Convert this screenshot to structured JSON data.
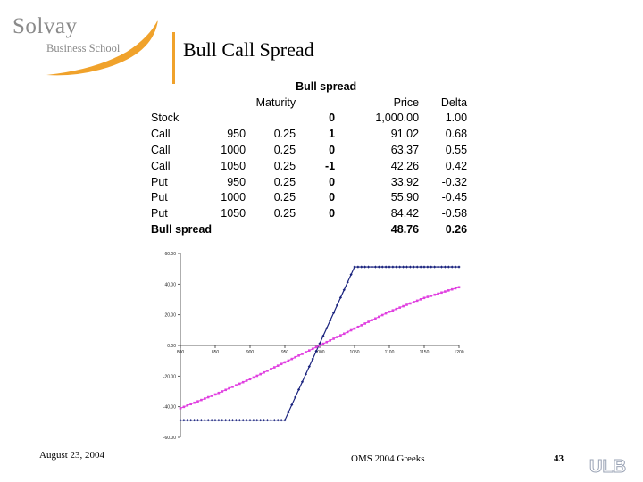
{
  "logo": {
    "name": "Solvay",
    "subtitle": "Business School",
    "accent_color": "#f0a22b",
    "text_color": "#8a8a8a"
  },
  "slide": {
    "title": "Bull Call Spread"
  },
  "table": {
    "caption": "Bull spread",
    "headers": [
      "",
      "",
      "Maturity",
      "",
      "Price",
      "Delta"
    ],
    "rows": [
      [
        "Stock",
        "",
        "",
        "0",
        "1,000.00",
        "1.00"
      ],
      [
        "Call",
        "950",
        "0.25",
        "1",
        "91.02",
        "0.68"
      ],
      [
        "Call",
        "1000",
        "0.25",
        "0",
        "63.37",
        "0.55"
      ],
      [
        "Call",
        "1050",
        "0.25",
        "-1",
        "42.26",
        "0.42"
      ],
      [
        "Put",
        "950",
        "0.25",
        "0",
        "33.92",
        "-0.32"
      ],
      [
        "Put",
        "1000",
        "0.25",
        "0",
        "55.90",
        "-0.45"
      ],
      [
        "Put",
        "1050",
        "0.25",
        "0",
        "84.42",
        "-0.58"
      ]
    ],
    "total": [
      "Bull spread",
      "",
      "",
      "",
      "48.76",
      "0.26"
    ]
  },
  "chart_data": {
    "type": "line",
    "xlim": [
      800,
      1200
    ],
    "ylim": [
      -60,
      60
    ],
    "x_ticks": [
      "800",
      "850",
      "900",
      "950",
      "1000",
      "1050",
      "1100",
      "1150",
      "1200"
    ],
    "y_ticks": [
      "60.00",
      "40.00",
      "20.00",
      "0.00",
      "-20.00",
      "-40.00",
      "-60.00"
    ],
    "grid": false,
    "legend": "none",
    "series": [
      {
        "color": "#1a237e",
        "marker": "diamond",
        "x": [
          800,
          950,
          1050,
          1200
        ],
        "y": [
          -48.76,
          -48.76,
          51.24,
          51.24
        ]
      },
      {
        "color": "#e040e0",
        "marker": "square",
        "x": [
          800,
          850,
          900,
          950,
          1000,
          1050,
          1100,
          1150,
          1200
        ],
        "y": [
          -41.0,
          -32.0,
          -22.0,
          -11.0,
          0.0,
          11.0,
          22.0,
          31.0,
          38.0
        ]
      }
    ]
  },
  "footer": {
    "date": "August 23, 2004",
    "center": "OMS 2004 Greeks",
    "page": "43",
    "institution_logo": "ULB"
  }
}
